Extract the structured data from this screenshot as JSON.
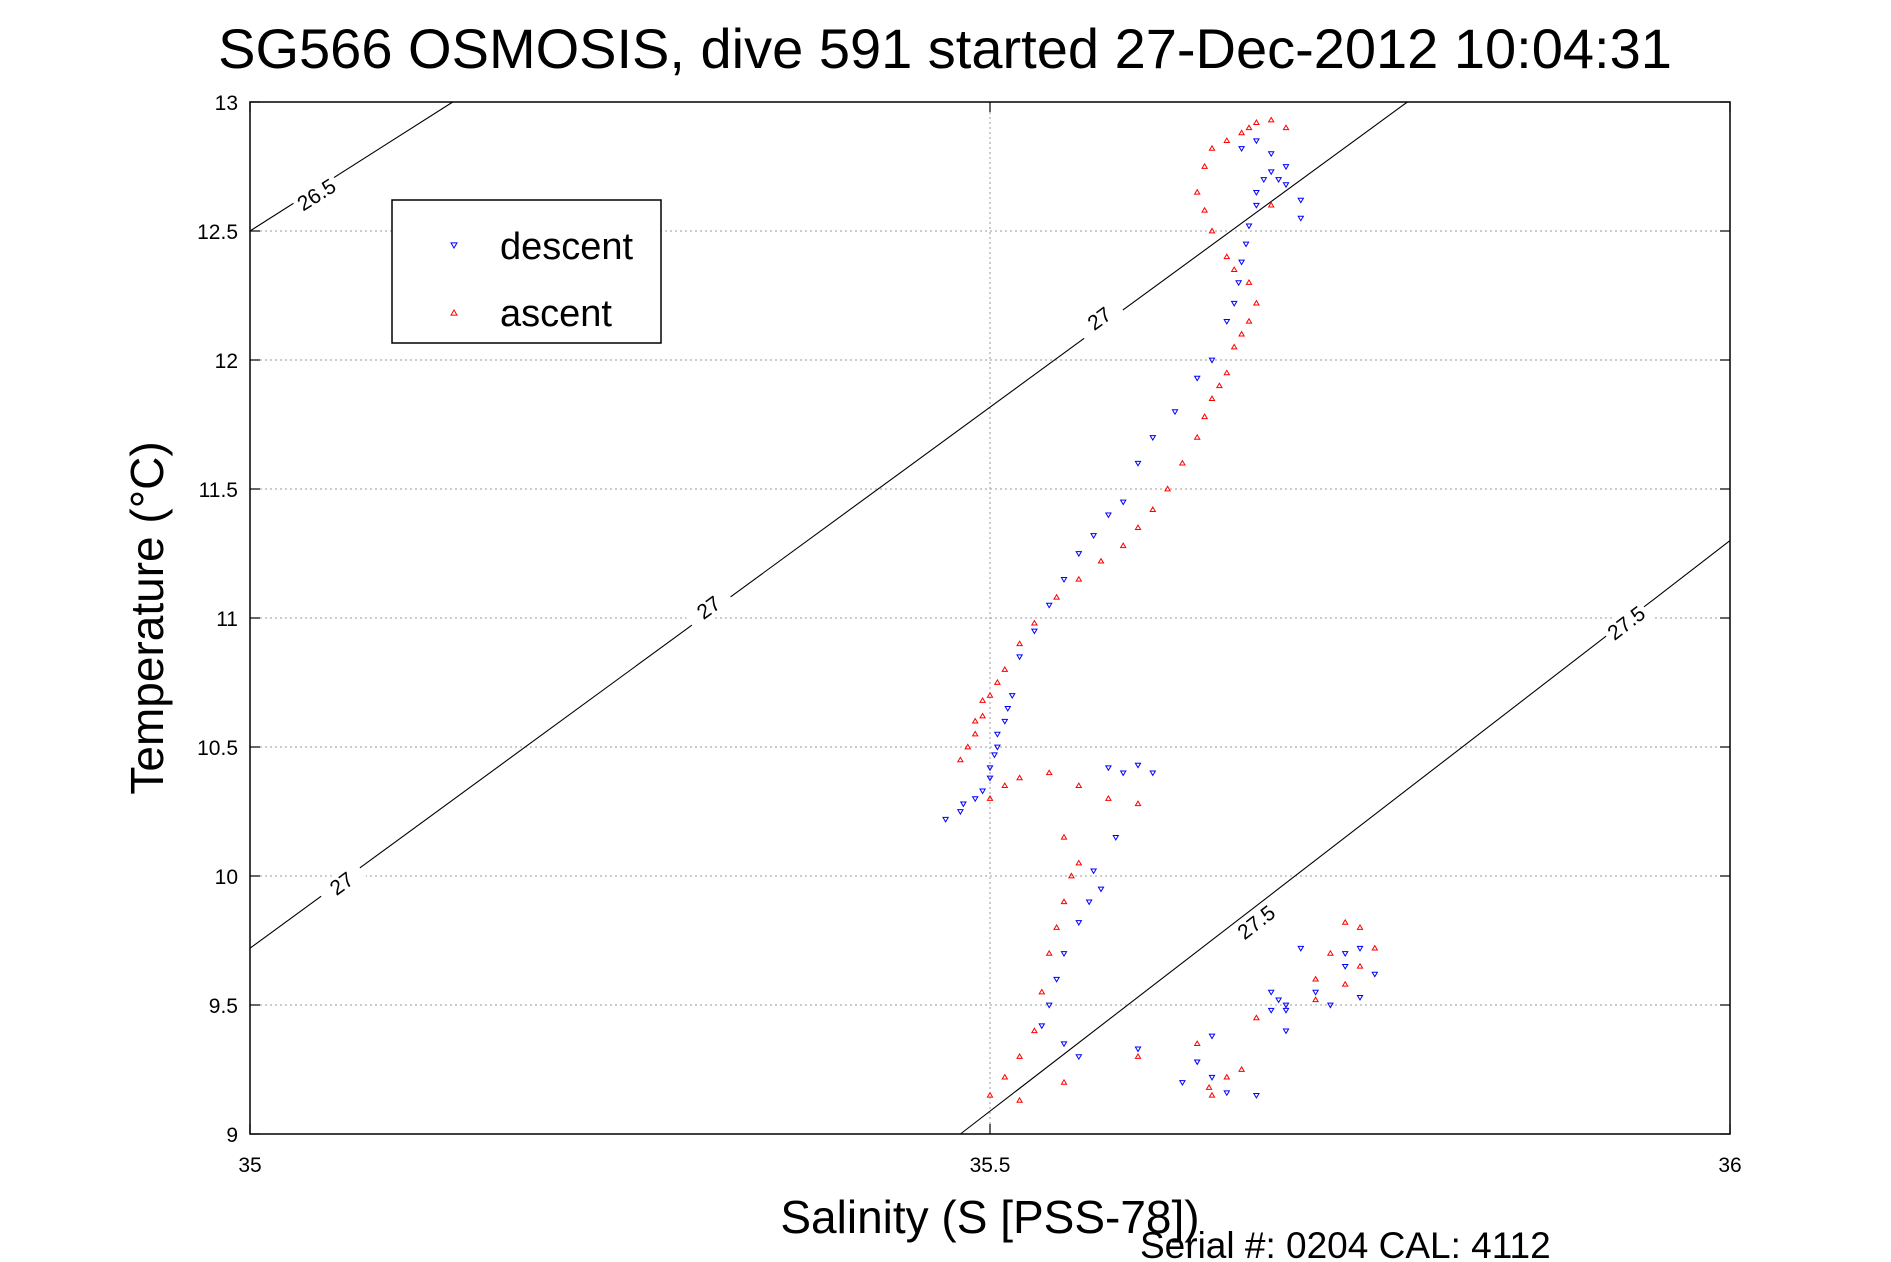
{
  "chart_data": {
    "type": "scatter",
    "title": "SG566 OSMOSIS, dive 591 started 27-Dec-2012 10:04:31",
    "xlabel": "Salinity (S [PSS-78])",
    "ylabel": "Temperature (°C)",
    "xlim": [
      35,
      36
    ],
    "ylim": [
      9,
      13
    ],
    "xticks": [
      {
        "value": 35,
        "label": "35"
      },
      {
        "value": 35.5,
        "label": "35.5"
      },
      {
        "value": 36,
        "label": "36"
      }
    ],
    "yticks": [
      {
        "value": 9,
        "label": "9"
      },
      {
        "value": 9.5,
        "label": "9.5"
      },
      {
        "value": 10,
        "label": "10"
      },
      {
        "value": 10.5,
        "label": "10.5"
      },
      {
        "value": 11,
        "label": "11"
      },
      {
        "value": 11.5,
        "label": "11.5"
      },
      {
        "value": 12,
        "label": "12"
      },
      {
        "value": 12.5,
        "label": "12.5"
      },
      {
        "value": 13,
        "label": "13"
      }
    ],
    "grid": true,
    "legend_position": "top-left",
    "contours": [
      {
        "label": "26.5",
        "points": [
          [
            35.0,
            12.5
          ],
          [
            35.137,
            13.0
          ]
        ],
        "labels": [
          {
            "x": 35.045,
            "y": 12.64,
            "text": "26.5"
          }
        ]
      },
      {
        "label": "27",
        "points": [
          [
            35.0,
            9.72
          ],
          [
            35.782,
            13.0
          ]
        ],
        "labels": [
          {
            "x": 35.062,
            "y": 9.97,
            "text": "27"
          },
          {
            "x": 35.31,
            "y": 11.04,
            "text": "27"
          },
          {
            "x": 35.574,
            "y": 12.16,
            "text": "27"
          }
        ]
      },
      {
        "label": "27.5",
        "points": [
          [
            35.48,
            9.0
          ],
          [
            36.0,
            11.3
          ]
        ],
        "labels": [
          {
            "x": 35.68,
            "y": 9.82,
            "text": "27.5"
          },
          {
            "x": 35.93,
            "y": 10.98,
            "text": "27.5"
          }
        ]
      }
    ],
    "series": [
      {
        "name": "descent",
        "color": "#0000ff",
        "marker": "triangle-down",
        "x": [
          35.47,
          35.48,
          35.482,
          35.49,
          35.495,
          35.5,
          35.5,
          35.503,
          35.505,
          35.505,
          35.51,
          35.512,
          35.515,
          35.52,
          35.53,
          35.54,
          35.55,
          35.56,
          35.57,
          35.58,
          35.59,
          35.6,
          35.61,
          35.625,
          35.64,
          35.65,
          35.66,
          35.665,
          35.668,
          35.67,
          35.673,
          35.675,
          35.68,
          35.68,
          35.685,
          35.69,
          35.695,
          35.7,
          35.71,
          35.71,
          35.7,
          35.69,
          35.68,
          35.67,
          35.58,
          35.59,
          35.6,
          35.61,
          35.585,
          35.57,
          35.575,
          35.567,
          35.56,
          35.55,
          35.545,
          35.54,
          35.535,
          35.55,
          35.56,
          35.6,
          35.65,
          35.7,
          35.73,
          35.75,
          35.76,
          35.74,
          35.71,
          35.69,
          35.68,
          35.66,
          35.65,
          35.64,
          35.63,
          35.69,
          35.695,
          35.7,
          35.72,
          35.74,
          35.75,
          35.7
        ],
        "y": [
          10.22,
          10.25,
          10.28,
          10.3,
          10.33,
          10.38,
          10.42,
          10.47,
          10.5,
          10.55,
          10.6,
          10.65,
          10.7,
          10.85,
          10.95,
          11.05,
          11.15,
          11.25,
          11.32,
          11.4,
          11.45,
          11.6,
          11.7,
          11.8,
          11.93,
          12.0,
          12.15,
          12.22,
          12.3,
          12.38,
          12.45,
          12.52,
          12.6,
          12.65,
          12.7,
          12.73,
          12.7,
          12.68,
          12.62,
          12.55,
          12.75,
          12.8,
          12.85,
          12.82,
          10.42,
          10.4,
          10.43,
          10.4,
          10.15,
          10.02,
          9.95,
          9.9,
          9.82,
          9.7,
          9.6,
          9.5,
          9.42,
          9.35,
          9.3,
          9.33,
          9.38,
          9.48,
          9.5,
          9.53,
          9.62,
          9.7,
          9.72,
          9.55,
          9.15,
          9.16,
          9.22,
          9.28,
          9.2,
          9.48,
          9.52,
          9.5,
          9.55,
          9.65,
          9.72,
          9.4
        ],
        "y_note": ""
      },
      {
        "name": "ascent",
        "color": "#ff0000",
        "marker": "triangle-up",
        "x": [
          35.48,
          35.485,
          35.49,
          35.49,
          35.495,
          35.495,
          35.5,
          35.505,
          35.51,
          35.52,
          35.53,
          35.545,
          35.56,
          35.575,
          35.59,
          35.6,
          35.61,
          35.62,
          35.63,
          35.64,
          35.645,
          35.65,
          35.655,
          35.66,
          35.665,
          35.67,
          35.675,
          35.68,
          35.675,
          35.665,
          35.66,
          35.65,
          35.645,
          35.64,
          35.645,
          35.65,
          35.66,
          35.67,
          35.675,
          35.68,
          35.69,
          35.7,
          35.69,
          35.5,
          35.51,
          35.52,
          35.54,
          35.56,
          35.58,
          35.6,
          35.55,
          35.56,
          35.555,
          35.55,
          35.545,
          35.54,
          35.535,
          35.53,
          35.52,
          35.51,
          35.5,
          35.52,
          35.55,
          35.6,
          35.64,
          35.68,
          35.72,
          35.74,
          35.75,
          35.76,
          35.75,
          35.74,
          35.73,
          35.72,
          35.65,
          35.648,
          35.66,
          35.67
        ],
        "y": [
          10.45,
          10.5,
          10.55,
          10.6,
          10.62,
          10.68,
          10.7,
          10.75,
          10.8,
          10.9,
          10.98,
          11.08,
          11.15,
          11.22,
          11.28,
          11.35,
          11.42,
          11.5,
          11.6,
          11.7,
          11.78,
          11.85,
          11.9,
          11.95,
          12.05,
          12.1,
          12.15,
          12.22,
          12.3,
          12.35,
          12.4,
          12.5,
          12.58,
          12.65,
          12.75,
          12.82,
          12.85,
          12.88,
          12.9,
          12.92,
          12.93,
          12.9,
          12.6,
          10.3,
          10.35,
          10.38,
          10.4,
          10.35,
          10.3,
          10.28,
          10.15,
          10.05,
          10.0,
          9.9,
          9.8,
          9.7,
          9.55,
          9.4,
          9.3,
          9.22,
          9.15,
          9.13,
          9.2,
          9.3,
          9.35,
          9.45,
          9.52,
          9.58,
          9.65,
          9.72,
          9.8,
          9.82,
          9.7,
          9.6,
          9.15,
          9.18,
          9.22,
          9.25
        ],
        "y_note": ""
      }
    ]
  },
  "footer": {
    "serial_label": "Serial #: 0204  CAL: 4112"
  }
}
